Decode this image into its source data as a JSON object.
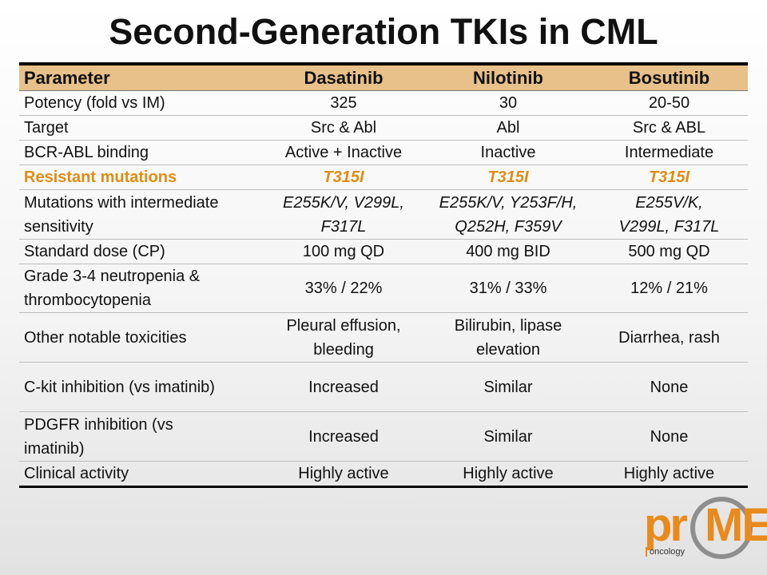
{
  "slide": {
    "title": "Second-Generation TKIs in CML"
  },
  "table": {
    "headers": [
      "Parameter",
      "Dasatinib",
      "Nilotinib",
      "Bosutinib"
    ],
    "rows": [
      {
        "label": "Potency (fold vs IM)",
        "values": [
          "325",
          "30",
          "20-50"
        ]
      },
      {
        "label": "Target",
        "values": [
          "Src & Abl",
          "Abl",
          "Src & ABL"
        ]
      },
      {
        "label": "BCR-ABL binding",
        "values": [
          "Active + Inactive",
          "Inactive",
          "Intermediate"
        ]
      },
      {
        "label": "Resistant mutations",
        "values": [
          "T315I",
          "T315I",
          "T315I"
        ]
      },
      {
        "label_lines": [
          "Mutations with intermediate",
          "sensitivity"
        ],
        "values_lines": [
          [
            "E255K/V, V299L,",
            "F317L"
          ],
          [
            "E255K/V, Y253F/H,",
            "Q252H, F359V"
          ],
          [
            "E255V/K,",
            "V299L, F317L"
          ]
        ]
      },
      {
        "label": "Standard dose (CP)",
        "values": [
          "100 mg QD",
          "400 mg BID",
          "500 mg QD"
        ]
      },
      {
        "label_lines": [
          "Grade 3-4 neutropenia &",
          "thrombocytopenia"
        ],
        "values": [
          "33% / 22%",
          "31% / 33%",
          "12% / 21%"
        ]
      },
      {
        "label": "Other notable toxicities",
        "values_lines": [
          [
            "Pleural effusion,",
            "bleeding"
          ],
          [
            "Bilirubin, lipase",
            "elevation"
          ],
          [
            "Diarrhea, rash"
          ]
        ]
      },
      {
        "label": "C-kit inhibition (vs imatinib)",
        "values": [
          "Increased",
          "Similar",
          "None"
        ]
      },
      {
        "label_lines": [
          "PDGFR inhibition (vs",
          "imatinib)"
        ],
        "values": [
          "Increased",
          "Similar",
          "None"
        ]
      },
      {
        "label": "Clinical activity",
        "values": [
          "Highly active",
          "Highly active",
          "Highly active"
        ]
      }
    ]
  },
  "logo": {
    "prefix": "pr",
    "suffix": "ME",
    "sub": "oncology",
    "accent_color": "#e98a1c",
    "ring_color": "#8e8e8e"
  },
  "colors": {
    "header_bg": "#e8c08a",
    "highlight_text": "#e08c14"
  }
}
